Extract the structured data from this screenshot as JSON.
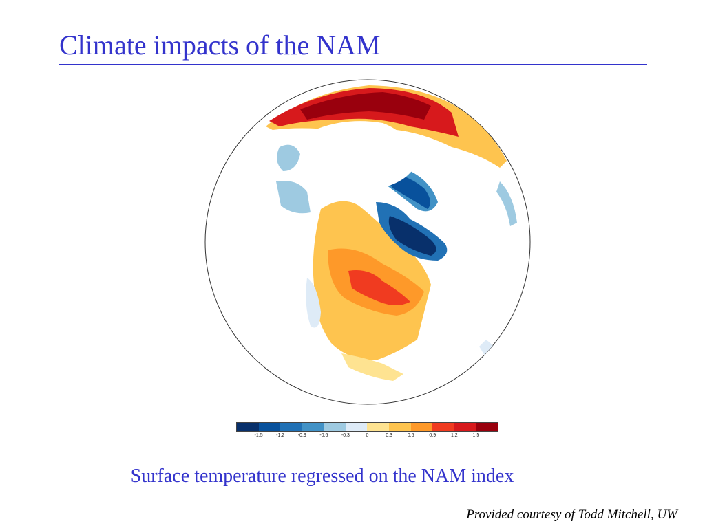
{
  "slide": {
    "title": "Climate impacts of the NAM",
    "subtitle": "Surface temperature regressed on the NAM index",
    "credit": "Provided courtesy of Todd Mitchell, UW"
  },
  "map": {
    "projection": "orthographic-north-polar",
    "region": "Northern Hemisphere (North America, Greenland, Arctic, Eurasia)"
  },
  "colorbar": {
    "colors": [
      "#08306b",
      "#08519c",
      "#2171b5",
      "#4292c6",
      "#9ecae1",
      "#deebf7",
      "#fee391",
      "#fec44f",
      "#fe9929",
      "#f03b20",
      "#d7191c",
      "#99000d"
    ],
    "tick_labels": [
      "-1.5",
      "-1.2",
      "-0.9",
      "-0.6",
      "-0.3",
      "0",
      "0.3",
      "0.6",
      "0.9",
      "1.2",
      "1.5"
    ]
  }
}
